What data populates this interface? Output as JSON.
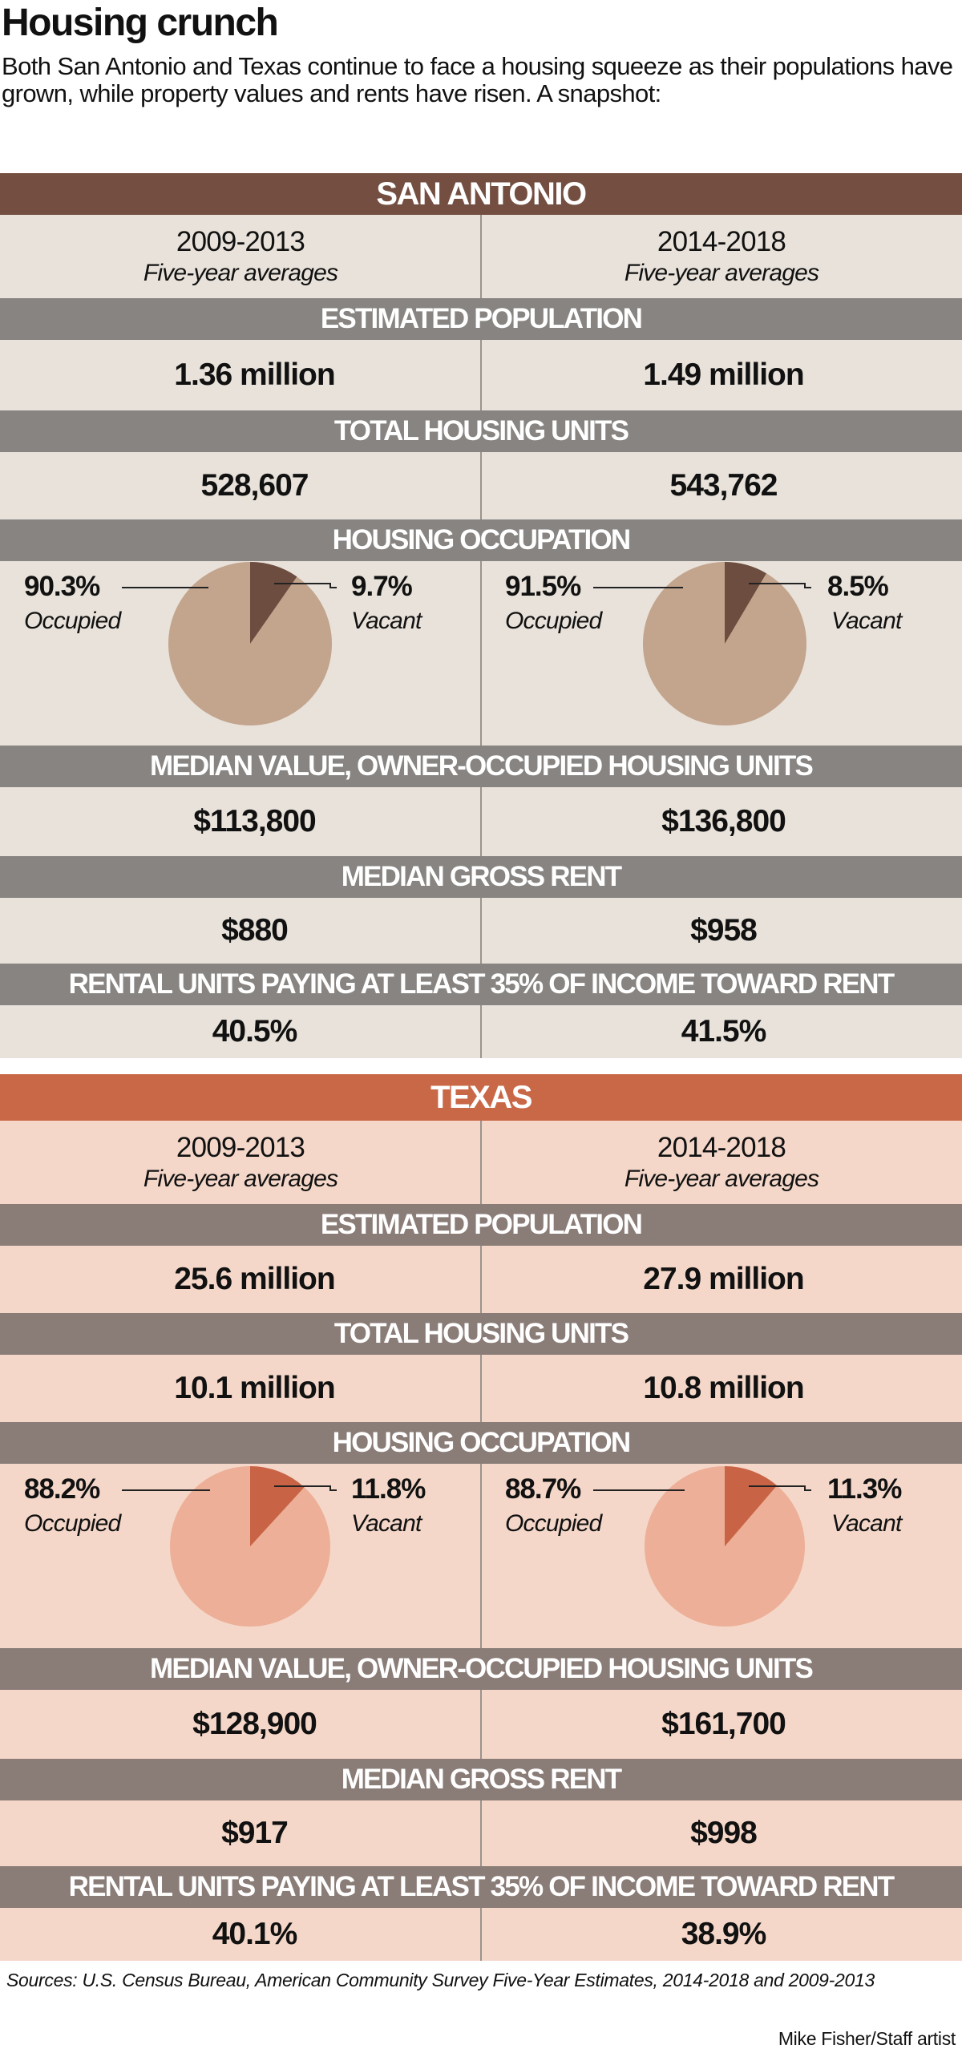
{
  "title": "Housing crunch",
  "intro": "Both San Antonio and Texas continue to face a housing squeeze as their populations have grown, while property values and rents have risen. A snapshot:",
  "colors": {
    "sa_header": "#744f41",
    "sa_bg": "#e8e2da",
    "sa_band": "#878481",
    "sa_pie_light": "#c3a48d",
    "sa_pie_dark": "#6d4d3f",
    "tx_header": "#c96847",
    "tx_bg": "#f4d7c9",
    "tx_band": "#8a7c77",
    "tx_pie_light": "#edaf97",
    "tx_pie_dark": "#c86445"
  },
  "chart_data": [
    {
      "type": "table",
      "title": "SAN ANTONIO",
      "periods": [
        {
          "years": "2009-2013",
          "note": "Five-year averages"
        },
        {
          "years": "2014-2018",
          "note": "Five-year averages"
        }
      ],
      "metrics": [
        {
          "label": "ESTIMATED POPULATION",
          "values": [
            "1.36 million",
            "1.49 million"
          ]
        },
        {
          "label": "TOTAL HOUSING UNITS",
          "values": [
            "528,607",
            "543,762"
          ]
        },
        {
          "label": "HOUSING OCCUPATION",
          "type": "pie",
          "pies": [
            {
              "occupied": 90.3,
              "vacant": 9.7,
              "occupied_label": "90.3%",
              "vacant_label": "9.7%"
            },
            {
              "occupied": 91.5,
              "vacant": 8.5,
              "occupied_label": "91.5%",
              "vacant_label": "8.5%"
            }
          ],
          "occupied_text": "Occupied",
          "vacant_text": "Vacant"
        },
        {
          "label": "MEDIAN VALUE, OWNER-OCCUPIED HOUSING UNITS",
          "values": [
            "$113,800",
            "$136,800"
          ]
        },
        {
          "label": "MEDIAN GROSS RENT",
          "values": [
            "$880",
            "$958"
          ]
        },
        {
          "label": "RENTAL UNITS PAYING AT LEAST 35% OF INCOME TOWARD RENT",
          "values": [
            "40.5%",
            "41.5%"
          ]
        }
      ]
    },
    {
      "type": "table",
      "title": "TEXAS",
      "periods": [
        {
          "years": "2009-2013",
          "note": "Five-year averages"
        },
        {
          "years": "2014-2018",
          "note": "Five-year averages"
        }
      ],
      "metrics": [
        {
          "label": "ESTIMATED POPULATION",
          "values": [
            "25.6 million",
            "27.9 million"
          ]
        },
        {
          "label": "TOTAL HOUSING UNITS",
          "values": [
            "10.1 million",
            "10.8 million"
          ]
        },
        {
          "label": "HOUSING OCCUPATION",
          "type": "pie",
          "pies": [
            {
              "occupied": 88.2,
              "vacant": 11.8,
              "occupied_label": "88.2%",
              "vacant_label": "11.8%"
            },
            {
              "occupied": 88.7,
              "vacant": 11.3,
              "occupied_label": "88.7%",
              "vacant_label": "11.3%"
            }
          ],
          "occupied_text": "Occupied",
          "vacant_text": "Vacant"
        },
        {
          "label": "MEDIAN VALUE, OWNER-OCCUPIED HOUSING UNITS",
          "values": [
            "$128,900",
            "$161,700"
          ]
        },
        {
          "label": "MEDIAN GROSS RENT",
          "values": [
            "$917",
            "$998"
          ]
        },
        {
          "label": "RENTAL UNITS PAYING AT LEAST 35% OF INCOME TOWARD RENT",
          "values": [
            "40.1%",
            "38.9%"
          ]
        }
      ]
    }
  ],
  "sources": "Sources: U.S. Census Bureau, American Community Survey Five-Year Estimates, 2014-2018 and 2009-2013",
  "credit": "Mike Fisher/Staff artist"
}
